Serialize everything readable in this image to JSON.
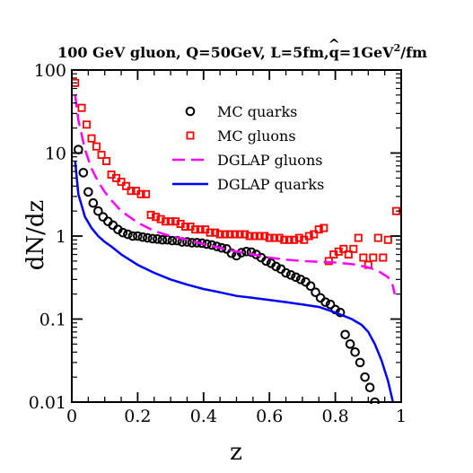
{
  "chart_data": {
    "type": "scatter",
    "title": "100 GeV gluon, Q=50GeV, L=5fm,",
    "title_qhat": "q",
    "title_qhat_accent": "^",
    "title_end": "=1GeV",
    "title_sup": "2",
    "title_tail": "/fm",
    "xlabel": "z",
    "ylabel": "dN/dz",
    "xlim": [
      0,
      1
    ],
    "ylim": [
      0.01,
      100
    ],
    "y_scale": "log",
    "grid": false,
    "legend_position": "top-right",
    "x_ticks": [
      0,
      0.2,
      0.4,
      0.6,
      0.8,
      1
    ],
    "x_tick_labels": [
      "0",
      "0.2",
      "0.4",
      "0.6",
      "0.8",
      "1"
    ],
    "y_ticks": [
      0.01,
      0.1,
      1,
      10,
      100
    ],
    "y_tick_labels": [
      "0.01",
      "0.1",
      "1",
      "10",
      "100"
    ],
    "series": [
      {
        "name": "MC quarks",
        "style": "circle",
        "color": "#000000",
        "x": [
          0.02,
          0.035,
          0.05,
          0.065,
          0.08,
          0.095,
          0.11,
          0.125,
          0.14,
          0.155,
          0.17,
          0.185,
          0.2,
          0.215,
          0.23,
          0.245,
          0.26,
          0.275,
          0.29,
          0.305,
          0.32,
          0.335,
          0.35,
          0.365,
          0.38,
          0.395,
          0.41,
          0.425,
          0.44,
          0.455,
          0.47,
          0.485,
          0.5,
          0.515,
          0.53,
          0.545,
          0.56,
          0.575,
          0.59,
          0.605,
          0.62,
          0.635,
          0.65,
          0.665,
          0.68,
          0.695,
          0.71,
          0.725,
          0.74,
          0.755,
          0.77,
          0.785,
          0.8,
          0.815,
          0.83,
          0.845,
          0.86,
          0.875,
          0.89,
          0.905,
          0.92
        ],
        "y": [
          11,
          5.8,
          3.4,
          2.5,
          2.0,
          1.7,
          1.5,
          1.35,
          1.2,
          1.1,
          1.05,
          1.0,
          1.0,
          0.97,
          0.95,
          0.93,
          0.92,
          0.9,
          0.9,
          0.88,
          0.88,
          0.85,
          0.85,
          0.83,
          0.83,
          0.82,
          0.8,
          0.78,
          0.75,
          0.72,
          0.7,
          0.62,
          0.58,
          0.63,
          0.65,
          0.64,
          0.6,
          0.55,
          0.5,
          0.47,
          0.43,
          0.4,
          0.36,
          0.34,
          0.32,
          0.3,
          0.28,
          0.25,
          0.21,
          0.18,
          0.16,
          0.15,
          0.13,
          0.12,
          0.065,
          0.05,
          0.04,
          0.03,
          0.02,
          0.015,
          0.01
        ]
      },
      {
        "name": "MC gluons",
        "style": "square",
        "color": "#ff0000",
        "x": [
          0.01,
          0.03,
          0.045,
          0.06,
          0.075,
          0.09,
          0.105,
          0.12,
          0.135,
          0.15,
          0.165,
          0.18,
          0.195,
          0.21,
          0.225,
          0.24,
          0.255,
          0.27,
          0.285,
          0.3,
          0.315,
          0.33,
          0.345,
          0.36,
          0.375,
          0.39,
          0.405,
          0.42,
          0.435,
          0.45,
          0.465,
          0.48,
          0.495,
          0.51,
          0.525,
          0.54,
          0.555,
          0.57,
          0.585,
          0.6,
          0.615,
          0.63,
          0.645,
          0.66,
          0.675,
          0.69,
          0.705,
          0.72,
          0.735,
          0.75,
          0.765,
          0.78,
          0.795,
          0.81,
          0.825,
          0.84,
          0.855,
          0.87,
          0.885,
          0.9,
          0.915,
          0.93,
          0.945,
          0.96,
          0.985
        ],
        "y": [
          70,
          35,
          22,
          15,
          12,
          9.5,
          8.0,
          5.5,
          5.0,
          4.5,
          4.0,
          3.5,
          3.5,
          3.2,
          3.2,
          1.8,
          1.7,
          1.6,
          1.5,
          1.5,
          1.5,
          1.4,
          1.3,
          1.3,
          1.2,
          1.2,
          1.2,
          1.1,
          1.1,
          1.05,
          1.05,
          1.05,
          1.05,
          1.05,
          1.05,
          1.0,
          1.0,
          1.0,
          1.0,
          0.95,
          0.95,
          0.95,
          0.9,
          0.9,
          0.9,
          0.95,
          0.9,
          1.0,
          1.05,
          1.2,
          1.25,
          0.5,
          0.6,
          0.65,
          0.7,
          0.6,
          0.7,
          0.95,
          0.55,
          0.45,
          0.55,
          0.95,
          0.55,
          0.9,
          2.0
        ]
      },
      {
        "name": "DGLAP gluons",
        "style": "dashed",
        "color": "#ff00ff",
        "x": [
          0.01,
          0.02,
          0.04,
          0.06,
          0.08,
          0.1,
          0.12,
          0.15,
          0.2,
          0.25,
          0.3,
          0.35,
          0.4,
          0.45,
          0.5,
          0.55,
          0.6,
          0.65,
          0.7,
          0.75,
          0.8,
          0.85,
          0.9,
          0.93,
          0.96,
          0.975,
          0.98
        ],
        "y": [
          50,
          25,
          11,
          6.5,
          4.5,
          3.4,
          2.7,
          2.0,
          1.45,
          1.15,
          1.0,
          0.9,
          0.8,
          0.72,
          0.65,
          0.6,
          0.55,
          0.52,
          0.5,
          0.49,
          0.48,
          0.46,
          0.42,
          0.38,
          0.32,
          0.25,
          0.2
        ]
      },
      {
        "name": "DGLAP quarks",
        "style": "solid",
        "color": "#0000ff",
        "x": [
          0.01,
          0.02,
          0.04,
          0.06,
          0.08,
          0.1,
          0.12,
          0.15,
          0.2,
          0.25,
          0.3,
          0.35,
          0.4,
          0.45,
          0.5,
          0.55,
          0.6,
          0.65,
          0.7,
          0.75,
          0.8,
          0.85,
          0.88,
          0.9,
          0.92,
          0.94,
          0.96,
          0.975
        ],
        "y": [
          8.0,
          3.2,
          1.7,
          1.25,
          1.0,
          0.85,
          0.75,
          0.6,
          0.45,
          0.36,
          0.3,
          0.26,
          0.23,
          0.21,
          0.19,
          0.18,
          0.17,
          0.16,
          0.15,
          0.14,
          0.12,
          0.1,
          0.085,
          0.07,
          0.05,
          0.032,
          0.018,
          0.01
        ]
      }
    ]
  }
}
